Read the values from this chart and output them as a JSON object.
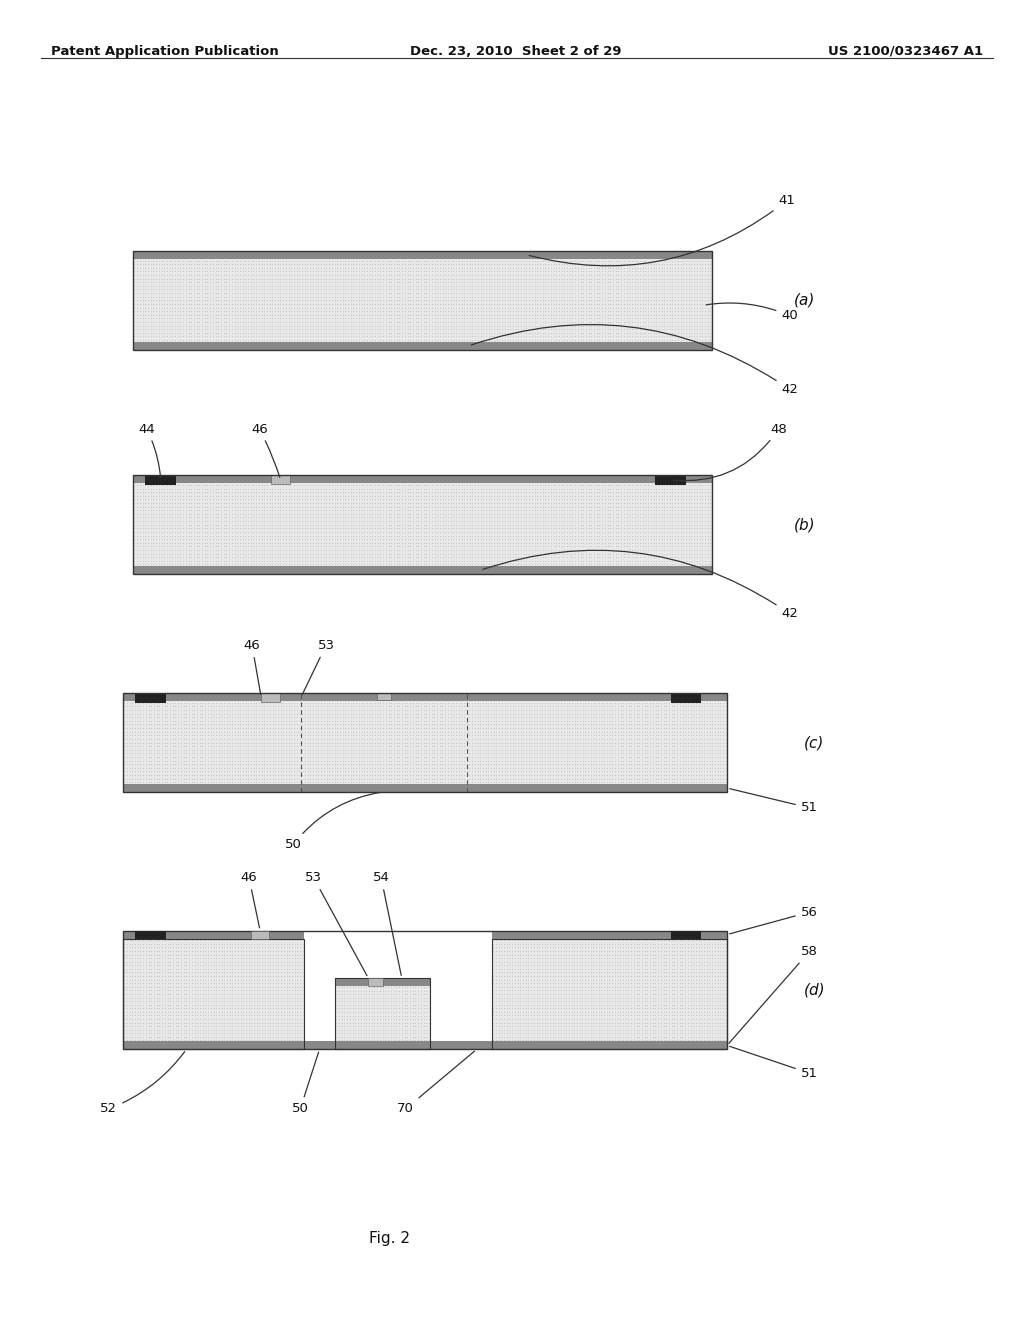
{
  "header_left": "Patent Application Publication",
  "header_mid": "Dec. 23, 2010  Sheet 2 of 29",
  "header_right": "US 2100/0323467 A1",
  "footer": "Fig. 2",
  "bg_color": "#ffffff",
  "stripe_color": "#888888",
  "dot_bg": "#e8e8e8",
  "dot_color": "#888888",
  "pad_dark": "#333333",
  "pad_light": "#cccccc",
  "diagrams": {
    "a": {
      "label": "(a)",
      "bx": 0.13,
      "by": 0.735,
      "bw": 0.565,
      "bh": 0.075
    },
    "b": {
      "label": "(b)",
      "bx": 0.13,
      "by": 0.565,
      "bw": 0.565,
      "bh": 0.075
    },
    "c": {
      "label": "(c)",
      "bx": 0.12,
      "by": 0.4,
      "bw": 0.59,
      "bh": 0.075
    },
    "d": {
      "label": "(d)",
      "bx": 0.12,
      "by": 0.205,
      "bw": 0.59,
      "bh": 0.09
    }
  }
}
